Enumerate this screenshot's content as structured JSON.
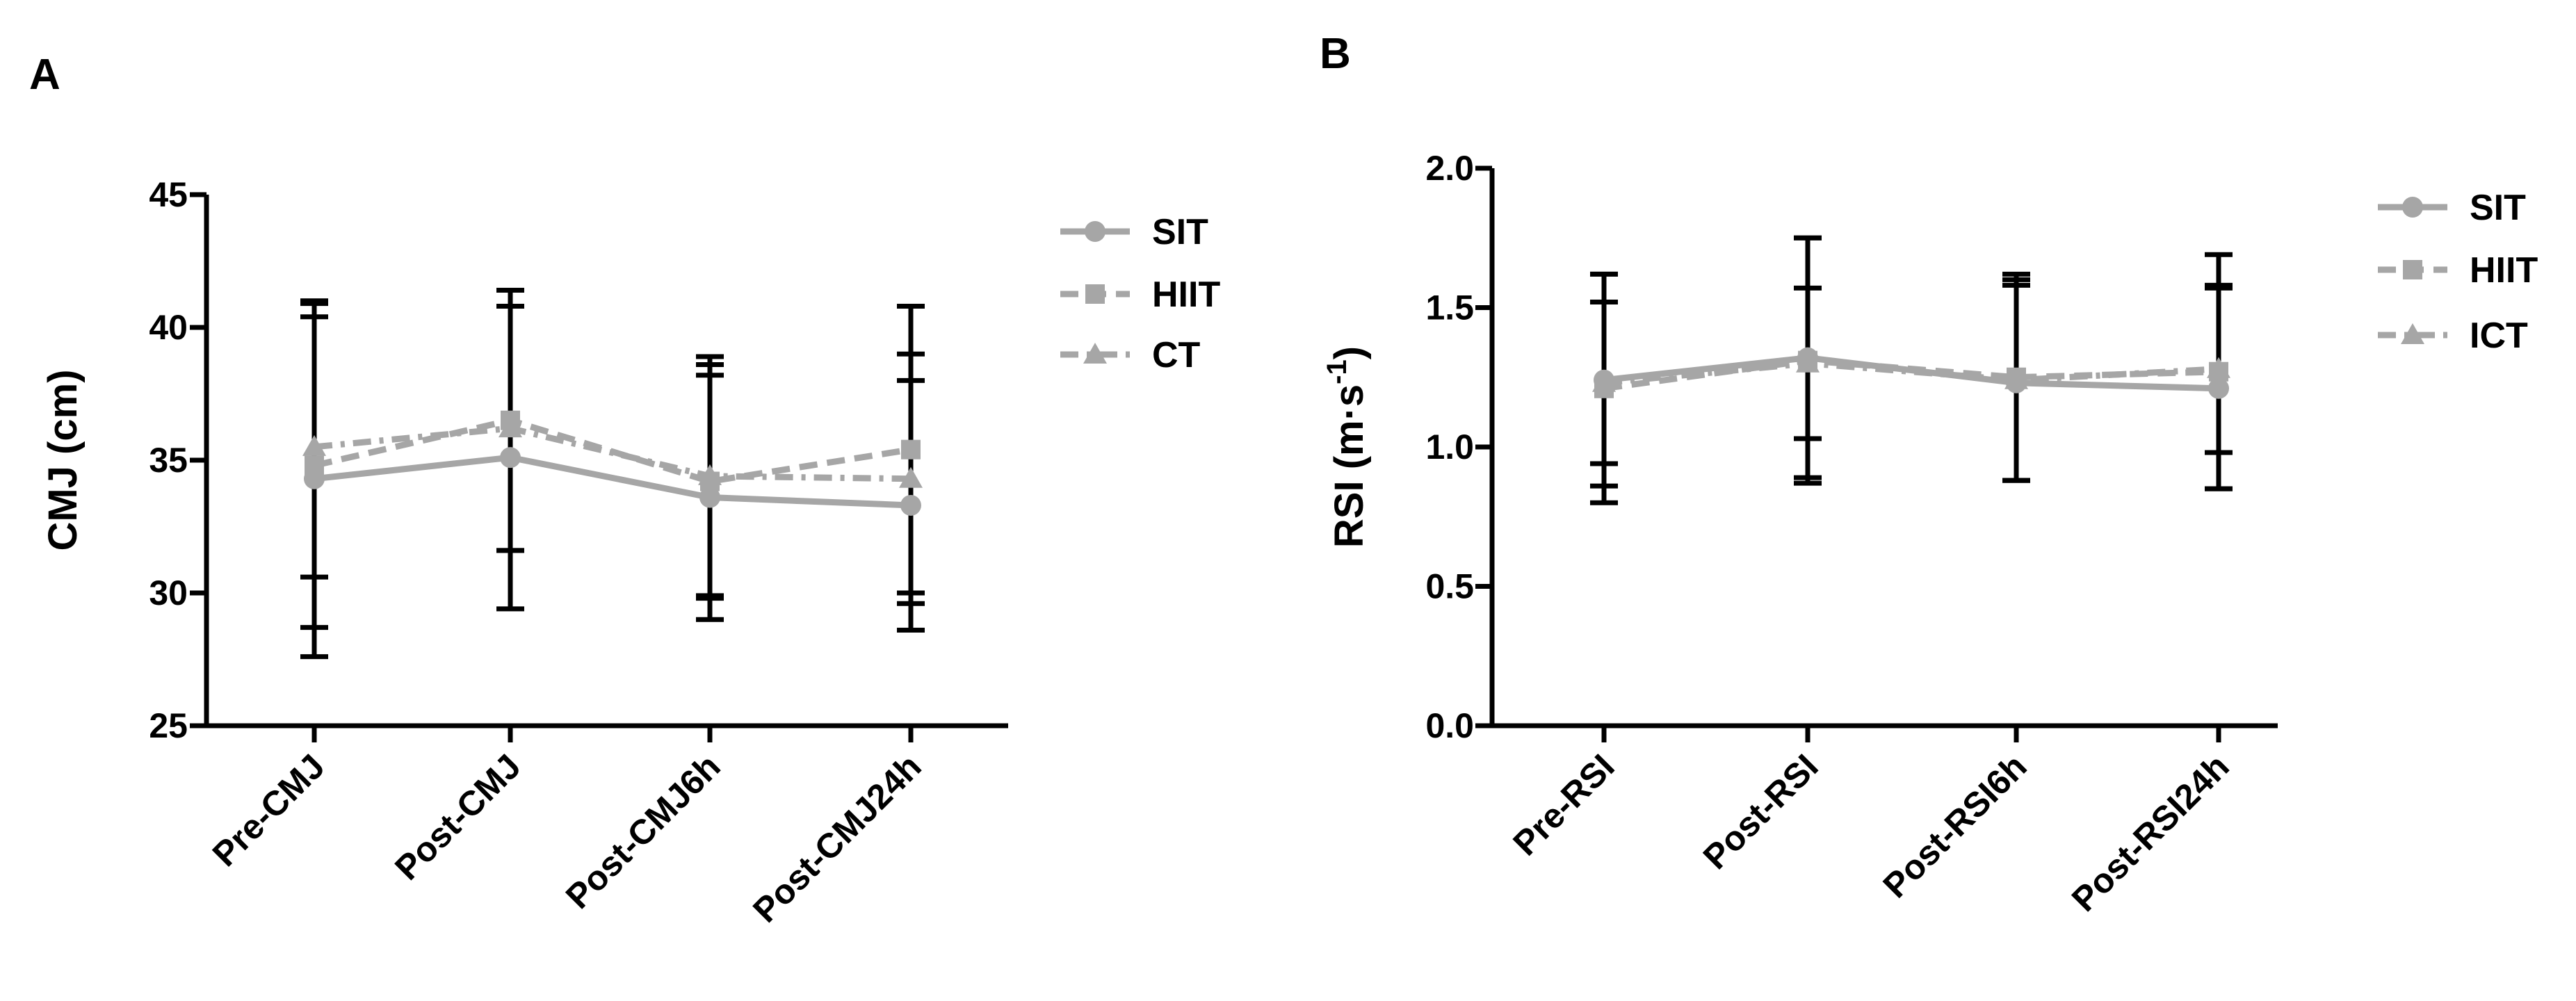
{
  "chart_data": [
    {
      "panel": "A",
      "type": "line",
      "title": "",
      "xlabel": "",
      "ylabel": "CMJ (cm)",
      "ylim": [
        25,
        45
      ],
      "yticks": [
        25,
        30,
        35,
        40,
        45
      ],
      "categories": [
        "Pre-CMJ",
        "Post-CMJ",
        "Post-CMJ6h",
        "Post-CMJ24h"
      ],
      "series": [
        {
          "name": "SIT",
          "marker": "circle",
          "dash": "solid",
          "color": "#a6a6a6",
          "values": [
            34.3,
            35.1,
            33.6,
            33.3
          ],
          "errors": [
            6.7,
            5.7,
            4.6,
            4.7
          ]
        },
        {
          "name": "HIIT",
          "marker": "square",
          "dash": "dashed",
          "color": "#a6a6a6",
          "values": [
            34.8,
            36.5,
            34.2,
            35.4
          ],
          "errors": [
            6.1,
            4.9,
            4.4,
            5.4
          ]
        },
        {
          "name": "CT",
          "marker": "triangle",
          "dash": "dashdot",
          "color": "#a6a6a6",
          "values": [
            35.5,
            36.2,
            34.4,
            34.3
          ],
          "errors": [
            4.9,
            4.6,
            4.5,
            4.7
          ]
        }
      ],
      "legend_position": "top-right"
    },
    {
      "panel": "B",
      "type": "line",
      "title": "",
      "xlabel": "",
      "ylabel_main": "RSI (m·s",
      "ylabel_sup": "-1",
      "ylabel_close": ")",
      "ylim": [
        0.0,
        2.0
      ],
      "yticks": [
        "0.0",
        "0.5",
        "1.0",
        "1.5",
        "2.0"
      ],
      "categories": [
        "Pre-RSI",
        "Post-RSI",
        "Post-RSI6h",
        "Post-RSI24h"
      ],
      "series": [
        {
          "name": "SIT",
          "marker": "circle",
          "dash": "solid",
          "color": "#a6a6a6",
          "values": [
            1.24,
            1.32,
            1.23,
            1.21
          ],
          "errors": [
            0.38,
            0.43,
            0.35,
            0.36
          ]
        },
        {
          "name": "HIIT",
          "marker": "square",
          "dash": "dashed",
          "color": "#a6a6a6",
          "values": [
            1.21,
            1.31,
            1.25,
            1.27
          ],
          "errors": [
            0.41,
            0.44,
            0.37,
            0.42
          ]
        },
        {
          "name": "ICT",
          "marker": "triangle",
          "dash": "dashdot",
          "color": "#a6a6a6",
          "values": [
            1.23,
            1.3,
            1.24,
            1.28
          ],
          "errors": [
            0.29,
            0.27,
            0.36,
            0.3
          ]
        }
      ],
      "legend_position": "top-right"
    }
  ]
}
